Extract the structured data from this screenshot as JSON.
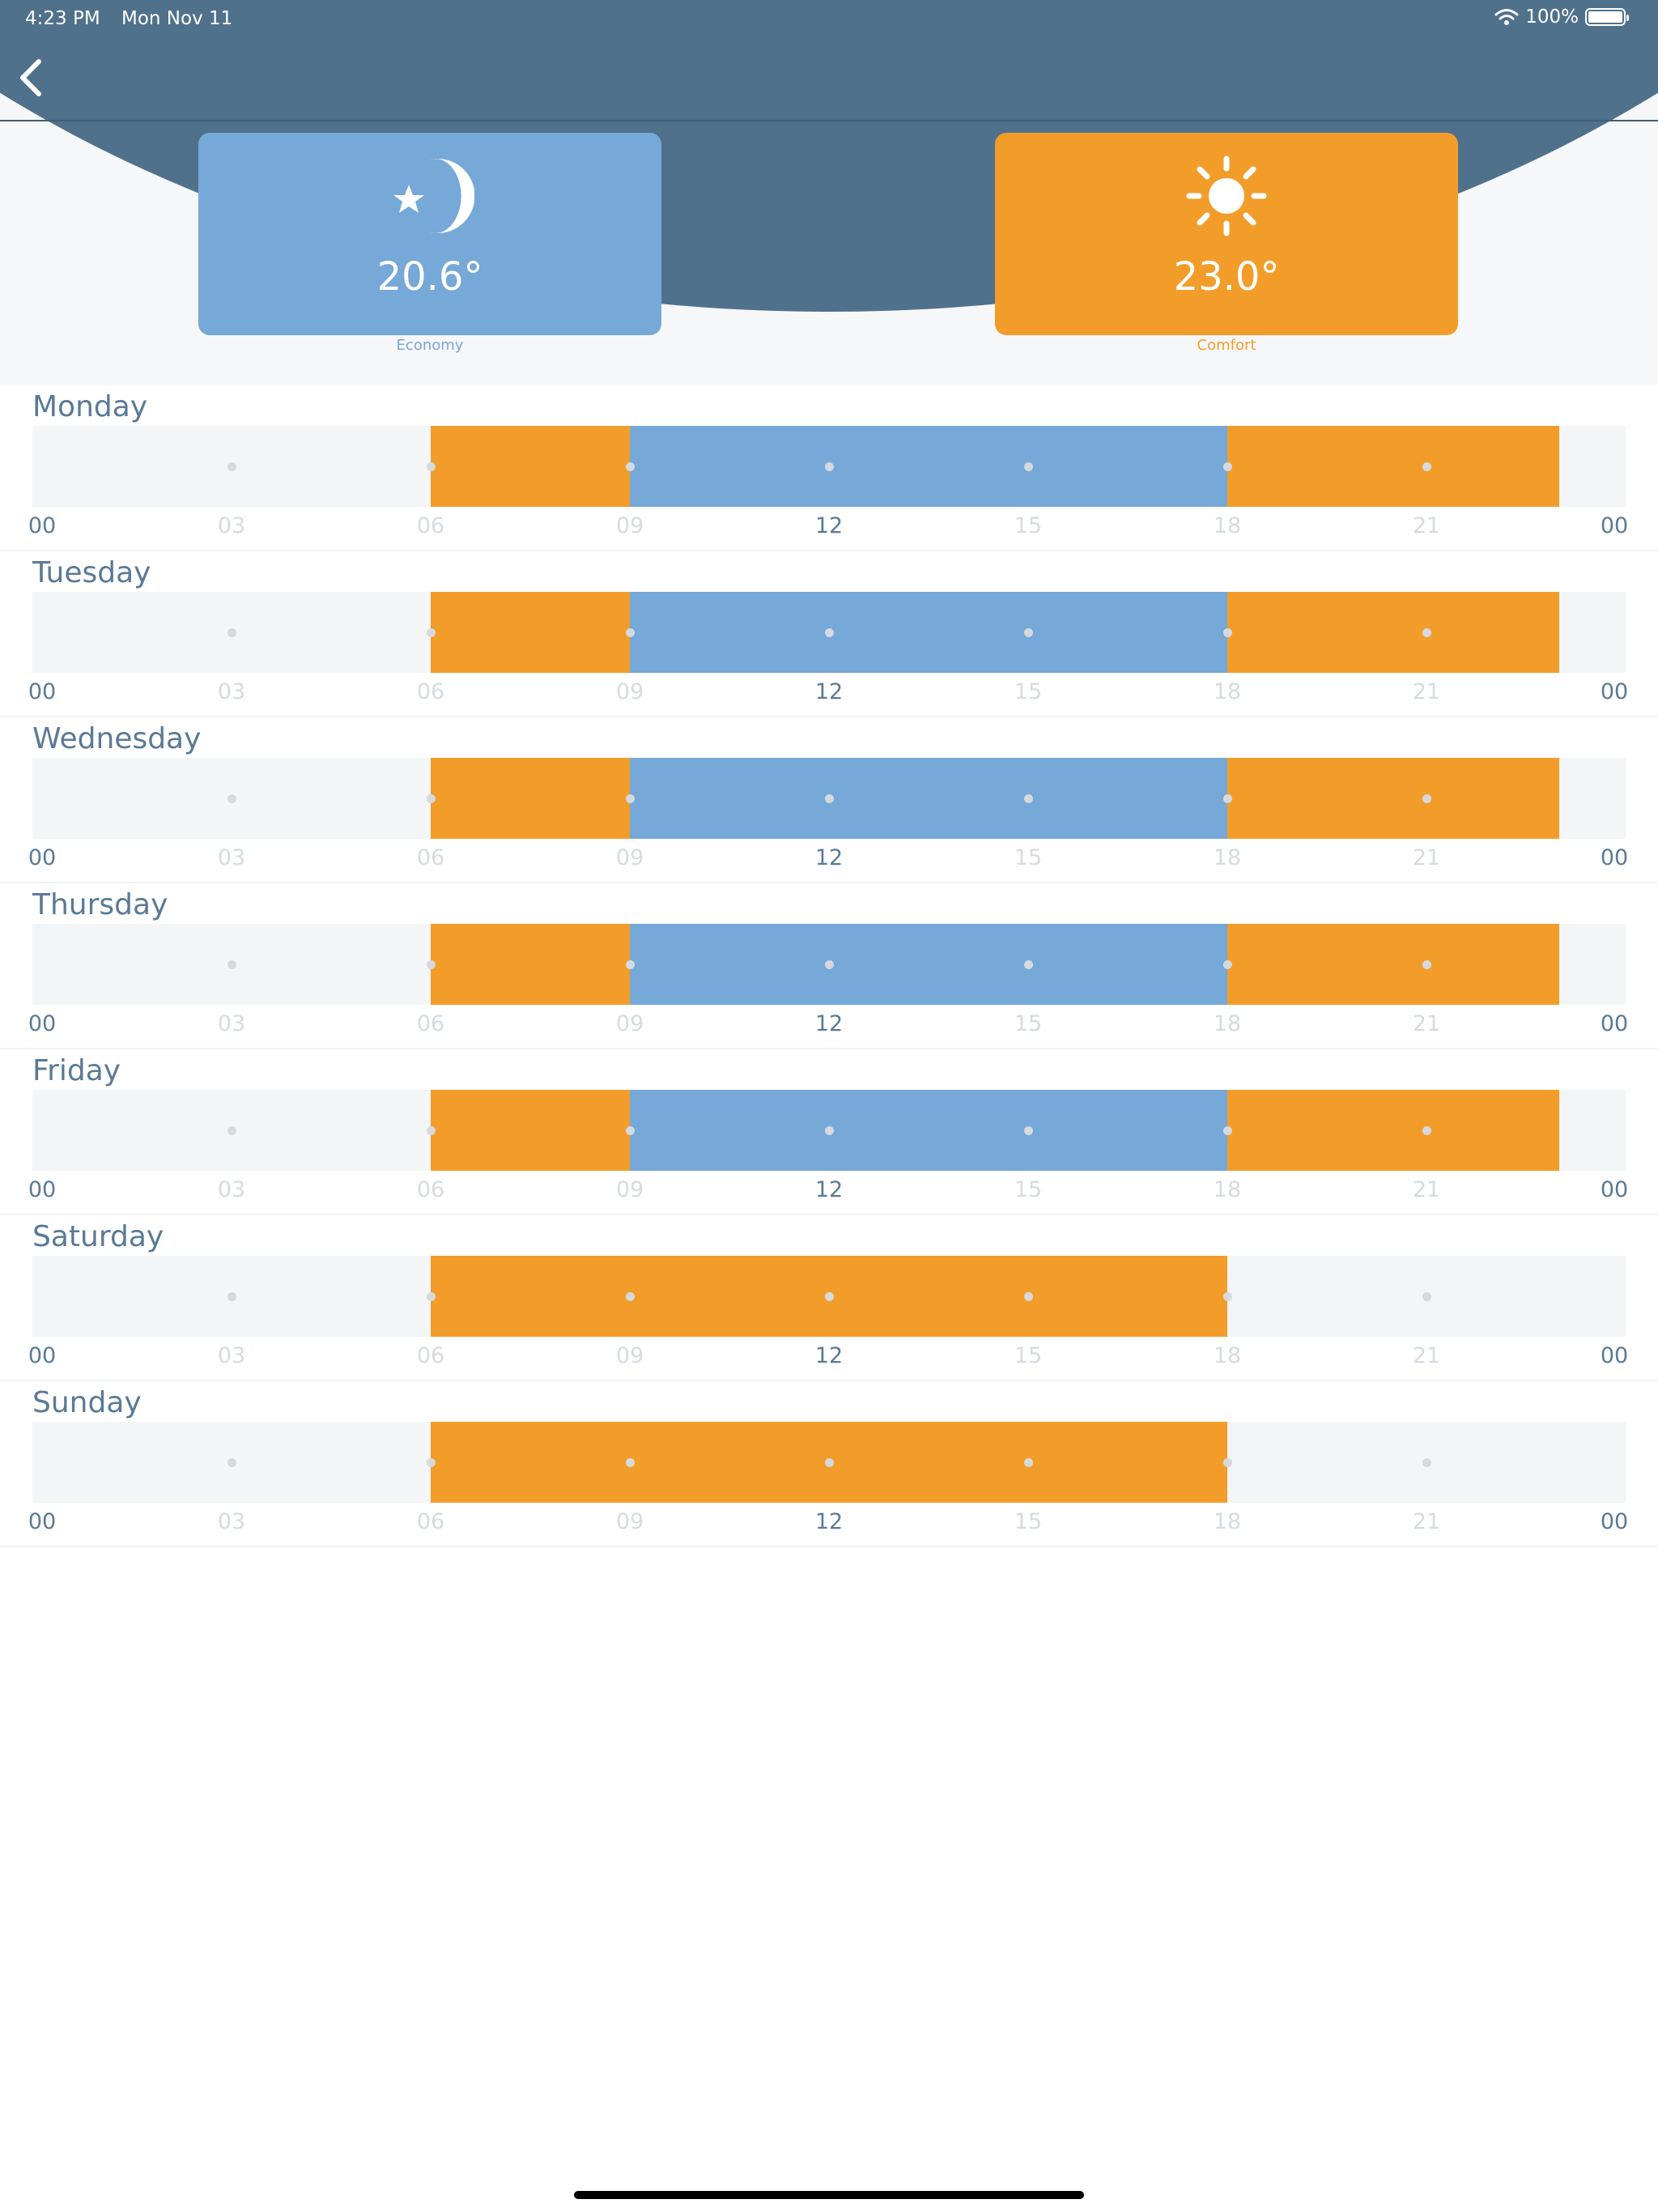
{
  "status_bar": {
    "time": "4:23 PM",
    "date": "Mon Nov 11",
    "battery": "100%"
  },
  "modes": [
    {
      "key": "economy",
      "label": "Economy",
      "temperature": "20.6°",
      "color": "#76a8d8",
      "icon": "moon-star-icon"
    },
    {
      "key": "comfort",
      "label": "Comfort",
      "temperature": "23.0°",
      "color": "#f29d2a",
      "icon": "sun-icon"
    }
  ],
  "hour_ticks": [
    "00",
    "03",
    "06",
    "09",
    "12",
    "15",
    "18",
    "21",
    "00"
  ],
  "days": [
    {
      "name": "Monday",
      "segments": [
        {
          "start": 6,
          "end": 9,
          "mode": "comfort"
        },
        {
          "start": 9,
          "end": 18,
          "mode": "economy"
        },
        {
          "start": 18,
          "end": 23,
          "mode": "comfort"
        }
      ]
    },
    {
      "name": "Tuesday",
      "segments": [
        {
          "start": 6,
          "end": 9,
          "mode": "comfort"
        },
        {
          "start": 9,
          "end": 18,
          "mode": "economy"
        },
        {
          "start": 18,
          "end": 23,
          "mode": "comfort"
        }
      ]
    },
    {
      "name": "Wednesday",
      "segments": [
        {
          "start": 6,
          "end": 9,
          "mode": "comfort"
        },
        {
          "start": 9,
          "end": 18,
          "mode": "economy"
        },
        {
          "start": 18,
          "end": 23,
          "mode": "comfort"
        }
      ]
    },
    {
      "name": "Thursday",
      "segments": [
        {
          "start": 6,
          "end": 9,
          "mode": "comfort"
        },
        {
          "start": 9,
          "end": 18,
          "mode": "economy"
        },
        {
          "start": 18,
          "end": 23,
          "mode": "comfort"
        }
      ]
    },
    {
      "name": "Friday",
      "segments": [
        {
          "start": 6,
          "end": 9,
          "mode": "comfort"
        },
        {
          "start": 9,
          "end": 18,
          "mode": "economy"
        },
        {
          "start": 18,
          "end": 23,
          "mode": "comfort"
        }
      ]
    },
    {
      "name": "Saturday",
      "segments": [
        {
          "start": 6,
          "end": 18,
          "mode": "comfort"
        }
      ]
    },
    {
      "name": "Sunday",
      "segments": [
        {
          "start": 6,
          "end": 18,
          "mode": "comfort"
        }
      ]
    }
  ]
}
